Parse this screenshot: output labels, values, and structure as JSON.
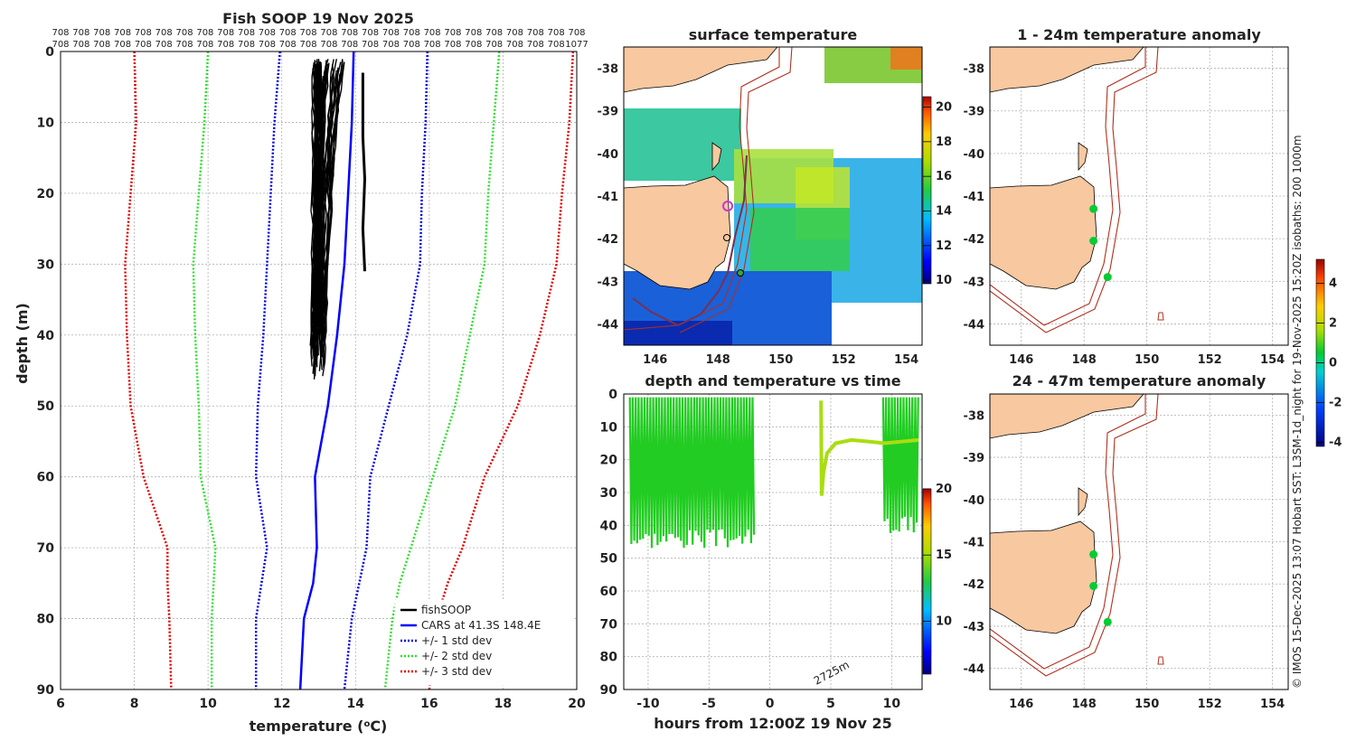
{
  "colors": {
    "fish": "#000000",
    "cars": "#0000ff",
    "sd1": "#0000dd",
    "sd2": "#33dd33",
    "sd3": "#dd0000",
    "land": "#f8c8a0",
    "coastline": "#000000",
    "isobath": "#b03020",
    "track_marker": "#cc33cc",
    "anomaly_marker": "#00cc33"
  },
  "profile_panel": {
    "title": "Fish SOOP 19 Nov 2025",
    "xlabel": "temperature (",
    "xlabel_sup": "o",
    "xlabel_unit": "C)",
    "ylabel": "depth (m)",
    "xticks": [
      "6",
      "8",
      "10",
      "12",
      "14",
      "16",
      "18",
      "20"
    ],
    "yticks": [
      "0",
      "10",
      "20",
      "30",
      "40",
      "50",
      "60",
      "70",
      "80",
      "90"
    ],
    "count_row1": [
      "708",
      "708",
      "708",
      "708",
      "708",
      "708",
      "708",
      "708",
      "708",
      "708",
      "708",
      "708",
      "708",
      "708",
      "708",
      "708",
      "708",
      "708",
      "708",
      "708",
      "708",
      "708",
      "708",
      "708",
      "708",
      "708"
    ],
    "count_row2": [
      "708",
      "708",
      "708",
      "708",
      "708",
      "708",
      "708",
      "708",
      "708",
      "708",
      "708",
      "708",
      "708",
      "708",
      "708",
      "708",
      "708",
      "708",
      "708",
      "708",
      "708",
      "708",
      "708",
      "708",
      "708",
      "1077"
    ],
    "legend": {
      "fish": "fishSOOP",
      "cars": "CARS at 41.3S 148.4E",
      "sd1": "+/- 1 std dev",
      "sd2": "+/- 2 std dev",
      "sd3": "+/- 3 std dev"
    }
  },
  "sst_panel": {
    "title": "surface temperature",
    "xticks": [
      "146",
      "148",
      "150",
      "152",
      "154"
    ],
    "yticks": [
      "-38",
      "-39",
      "-40",
      "-41",
      "-42",
      "-43",
      "-44"
    ],
    "colorbar_ticks": [
      "20",
      "18",
      "16",
      "14",
      "12",
      "10"
    ]
  },
  "time_panel": {
    "title": "depth and temperature vs time",
    "xlabel": "hours from 12:00Z 19 Nov 25",
    "xticks": [
      "-10",
      "-5",
      "0",
      "5",
      "10"
    ],
    "yticks": [
      "0",
      "10",
      "20",
      "30",
      "40",
      "50",
      "60",
      "70",
      "80",
      "90"
    ],
    "annotation": "2725m",
    "colorbar_ticks": [
      "20",
      "15",
      "10"
    ]
  },
  "anom_top": {
    "title": "1 - 24m temperature anomaly",
    "xticks": [
      "146",
      "148",
      "150",
      "152",
      "154"
    ],
    "yticks": [
      "-38",
      "-39",
      "-40",
      "-41",
      "-42",
      "-43",
      "-44"
    ]
  },
  "anom_bottom": {
    "title": "24 - 47m temperature anomaly",
    "xticks": [
      "146",
      "148",
      "150",
      "152",
      "154"
    ],
    "yticks": [
      "-38",
      "-39",
      "-40",
      "-41",
      "-42",
      "-43",
      "-44"
    ]
  },
  "anom_colorbar": {
    "ticks": [
      "4",
      "2",
      "0",
      "-2",
      "-4"
    ]
  },
  "side_caption": "© IMOS 15-Dec-2025 13:07 Hobart SST: L3SM-1d_night for 19-Nov-2025 15:20Z isobaths: 200  1000m",
  "chart_data": [
    {
      "type": "line",
      "title": "Fish SOOP 19 Nov 2025",
      "xlabel": "temperature (oC)",
      "ylabel": "depth (m)",
      "xlim": [
        6,
        20
      ],
      "ylim": [
        90,
        0
      ],
      "grid": true,
      "legend": "bottom-right",
      "series": [
        {
          "name": "fishSOOP",
          "temp_range": [
            12.8,
            13.9
          ],
          "depth_range": [
            1,
            47
          ],
          "profiles": 60
        },
        {
          "name": "fishSOOP (single)",
          "temp": [
            14.2,
            14.2,
            14.25,
            14.2,
            14.25
          ],
          "depth": [
            3,
            12,
            18,
            25,
            31
          ]
        },
        {
          "name": "CARS at 41.3S 148.4E",
          "temp": [
            13.95,
            13.9,
            13.8,
            13.7,
            13.5,
            13.25,
            12.9,
            12.95,
            12.85,
            12.6,
            12.5
          ],
          "depth": [
            0,
            10,
            20,
            30,
            40,
            50,
            60,
            70,
            75,
            80,
            90
          ]
        },
        {
          "name": "-1 std dev",
          "temp": [
            11.95,
            11.8,
            11.7,
            11.6,
            11.5,
            11.35,
            11.3,
            11.6,
            11.45,
            11.3,
            11.3
          ],
          "depth": [
            0,
            10,
            20,
            30,
            40,
            50,
            60,
            70,
            75,
            80,
            90
          ]
        },
        {
          "name": "+1 std dev",
          "temp": [
            15.95,
            15.9,
            15.8,
            15.75,
            15.4,
            14.9,
            14.4,
            14.3,
            14.1,
            13.9,
            13.7
          ],
          "depth": [
            0,
            10,
            20,
            30,
            40,
            50,
            60,
            70,
            75,
            80,
            90
          ]
        },
        {
          "name": "-2 std dev",
          "temp": [
            10.0,
            9.9,
            9.75,
            9.6,
            9.65,
            9.75,
            9.8,
            10.2,
            10.15,
            10.1,
            10.1
          ],
          "depth": [
            0,
            10,
            20,
            30,
            40,
            50,
            60,
            70,
            75,
            80,
            90
          ]
        },
        {
          "name": "+2 std dev",
          "temp": [
            17.9,
            17.75,
            17.6,
            17.5,
            17.1,
            16.7,
            16.1,
            15.5,
            15.2,
            15.0,
            14.8
          ],
          "depth": [
            0,
            10,
            20,
            30,
            40,
            50,
            60,
            70,
            75,
            80,
            90
          ]
        },
        {
          "name": "-3 std dev",
          "temp": [
            8.0,
            8.05,
            7.9,
            7.75,
            7.8,
            7.9,
            8.25,
            8.9,
            8.9,
            8.95,
            9.0
          ],
          "depth": [
            0,
            10,
            20,
            30,
            40,
            50,
            60,
            70,
            75,
            80,
            90
          ]
        },
        {
          "name": "+3 std dev",
          "temp": [
            19.9,
            19.8,
            19.6,
            19.45,
            19.0,
            18.4,
            17.5,
            16.9,
            16.5,
            16.2,
            16.0
          ],
          "depth": [
            0,
            10,
            20,
            30,
            40,
            50,
            60,
            70,
            75,
            80,
            90
          ]
        }
      ]
    },
    {
      "type": "heatmap",
      "title": "surface temperature",
      "xlim": [
        145,
        154.5
      ],
      "ylim": [
        -44.5,
        -37.5
      ],
      "colorbar_range": [
        10,
        20.5
      ]
    },
    {
      "type": "scatter",
      "title": "depth and temperature vs time",
      "xlabel": "hours from 12:00Z 19 Nov 25",
      "xlim": [
        -12,
        12.5
      ],
      "ylim": [
        90,
        0
      ],
      "colorbar_range": [
        6,
        20
      ],
      "segments": [
        {
          "start": -11.5,
          "end": -1.2,
          "depth_min": 1,
          "depth_max": 47,
          "temp": 13.5
        },
        {
          "start": 4.2,
          "end": 12.2,
          "depth_min": 2,
          "depth_max": 31,
          "temp": 14.3
        },
        {
          "start": 9.3,
          "end": 12.2,
          "depth_min": 1,
          "depth_max": 43,
          "temp": 13.6
        }
      ]
    },
    {
      "type": "scatter",
      "title": "1 - 24m temperature anomaly",
      "xlim": [
        145,
        154.5
      ],
      "ylim": [
        -44.5,
        -37.5
      ],
      "points": [
        {
          "lon": 148.3,
          "lat": -41.3,
          "anomaly": 0.1
        },
        {
          "lon": 148.3,
          "lat": -42.05,
          "anomaly": 0.2
        },
        {
          "lon": 148.75,
          "lat": -42.9,
          "anomaly": 0.1
        }
      ]
    },
    {
      "type": "scatter",
      "title": "24 - 47m temperature anomaly",
      "xlim": [
        145,
        154.5
      ],
      "ylim": [
        -44.5,
        -37.5
      ],
      "points": [
        {
          "lon": 148.3,
          "lat": -41.3,
          "anomaly": 0.1
        },
        {
          "lon": 148.3,
          "lat": -42.05,
          "anomaly": 0.1
        },
        {
          "lon": 148.75,
          "lat": -42.9,
          "anomaly": 0.2
        }
      ]
    }
  ]
}
